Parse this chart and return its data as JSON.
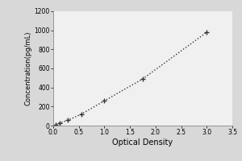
{
  "x_data": [
    0.05,
    0.13,
    0.28,
    0.55,
    1.0,
    1.75,
    3.0
  ],
  "y_data": [
    12,
    28,
    55,
    120,
    260,
    490,
    980
  ],
  "xlabel": "Optical Density",
  "ylabel": "Concentration(pg/mL)",
  "xlim": [
    0,
    3.5
  ],
  "ylim": [
    0,
    1200
  ],
  "xticks": [
    0,
    0.5,
    1,
    1.5,
    2,
    2.5,
    3,
    3.5
  ],
  "yticks": [
    0,
    200,
    400,
    600,
    800,
    1000,
    1200
  ],
  "line_color": "#333333",
  "marker": "+",
  "linestyle": "dotted",
  "outer_bg_color": "#d8d8d8",
  "plot_bg_color": "#f0f0f0",
  "markersize": 5,
  "linewidth": 1.0,
  "markeredgewidth": 1.0,
  "tick_labelsize": 5.5,
  "xlabel_fontsize": 7,
  "ylabel_fontsize": 6
}
